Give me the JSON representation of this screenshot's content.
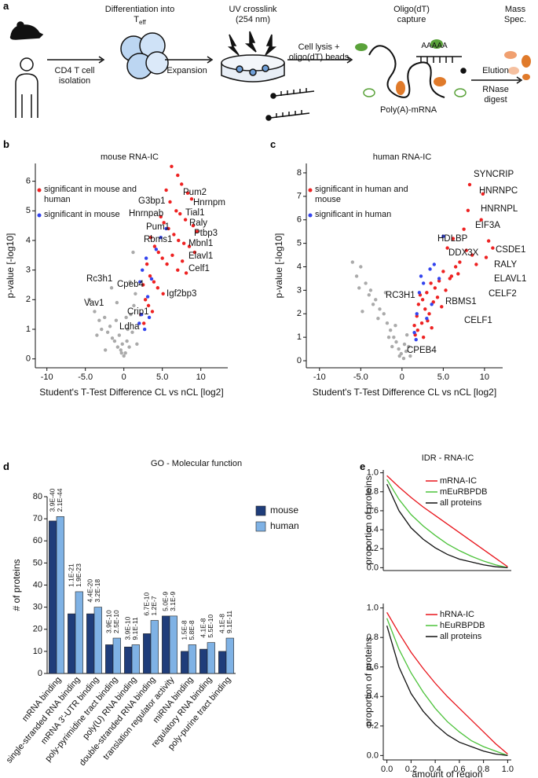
{
  "panel_labels": [
    "a",
    "b",
    "c",
    "d",
    "e"
  ],
  "workflow": {
    "differentiation": "Differentiation into T",
    "differentiation_sub": "eff",
    "isolation": "CD4 T cell isolation",
    "expansion": "Expansion",
    "crosslink": "UV crosslink (254 nm)",
    "lysis": "Cell lysis + oligo(dT) beads",
    "capture": "Oligo(dT) capture",
    "polya_tail": "AAAAA",
    "mrna": "Poly(A)-mRNA",
    "elution": "Elution",
    "digest": "RNase digest",
    "mass_spec": "Mass Spec."
  },
  "chart_data": [
    {
      "type": "scatter",
      "title": "mouse RNA-IC",
      "x_label": "Student's T-Test Difference CL vs nCL [log2]",
      "y_label": "p-value [-log10]",
      "xlim": [
        -11.5,
        13.5
      ],
      "ylim": [
        -0.3,
        6.6
      ],
      "xticks": [
        -10,
        {
          "value": -5,
          "label": "-5.0"
        },
        0,
        {
          "value": 5,
          "label": "5.0"
        },
        10
      ],
      "yticks": [
        0,
        1,
        2,
        3,
        4,
        5,
        6
      ],
      "series": [
        {
          "color": "#aaaaaa",
          "x": [
            -4.5,
            -3.8,
            -3.2,
            -2.9,
            -2.5,
            -2.1,
            -1.8,
            -1.5,
            -1.2,
            -1.0,
            -0.8,
            -0.6,
            -0.4,
            -0.2,
            0.0,
            0.2,
            0.4,
            0.5,
            0.7,
            0.9,
            1.1,
            1.3,
            1.5,
            1.7,
            -1.6,
            -2.4,
            -0.9,
            0.3,
            0.8,
            -3.5,
            1.2,
            -0.3
          ],
          "values": [
            2.0,
            1.6,
            1.3,
            1.0,
            1.4,
            0.9,
            1.1,
            0.7,
            0.6,
            1.3,
            0.4,
            0.8,
            0.3,
            0.5,
            0.1,
            0.2,
            0.6,
            1.0,
            0.4,
            1.5,
            0.9,
            1.8,
            2.2,
            0.5,
            2.4,
            0.3,
            1.9,
            1.4,
            2.6,
            0.8,
            3.6,
            0.2
          ]
        },
        {
          "name": "significant in mouse and human",
          "color": "#ee2222",
          "x": [
            6.2,
            7.0,
            7.5,
            8.3,
            8.8,
            5.5,
            6.0,
            6.8,
            7.3,
            8.0,
            9.0,
            9.5,
            4.8,
            5.2,
            5.8,
            6.5,
            7.1,
            7.8,
            8.5,
            9.2,
            3.5,
            4.0,
            4.5,
            5.0,
            5.6,
            6.3,
            7.0,
            7.6,
            8.1,
            3.0,
            3.4,
            3.9,
            4.4,
            5.1,
            2.5,
            2.8,
            3.2,
            3.7,
            2.2,
            2.6
          ],
          "values": [
            6.5,
            6.2,
            5.9,
            5.6,
            5.4,
            5.7,
            5.3,
            5.0,
            4.9,
            4.7,
            4.5,
            4.3,
            4.8,
            4.6,
            4.4,
            4.2,
            4.0,
            3.9,
            3.8,
            3.6,
            4.1,
            3.8,
            3.6,
            3.4,
            3.2,
            3.5,
            3.0,
            3.3,
            2.9,
            3.2,
            2.8,
            2.6,
            2.4,
            2.2,
            2.5,
            2.0,
            1.8,
            1.6,
            1.5,
            1.2
          ]
        },
        {
          "name": "significant in mouse",
          "color": "#3344ee",
          "x": [
            2.0,
            2.3,
            2.7,
            3.1,
            3.6,
            2.4,
            2.9,
            3.3,
            4.2,
            2.1,
            4.8,
            5.5
          ],
          "values": [
            1.2,
            1.5,
            1.0,
            2.1,
            2.7,
            3.0,
            3.4,
            1.4,
            3.7,
            2.6,
            4.1,
            4.4
          ]
        }
      ],
      "annotations": [
        "Pum2",
        "Hnrnpm",
        "G3bp1",
        "Tial1",
        "Raly",
        "Hnrnpab",
        "Ptbp3",
        "Pum1",
        "Mbnl1",
        "Rbms1",
        "Elavl1",
        "Celf1",
        "Igf2bp3",
        "Rc3h1",
        "Cpeb4",
        "Vav1",
        "Crip1",
        "Ldha"
      ]
    },
    {
      "type": "scatter",
      "title": "human RNA-IC",
      "x_label": "Student's T-Test Difference CL vs nCL [log2]",
      "y_label": "p-value [-log10]",
      "xlim": [
        -11.6,
        12.2
      ],
      "ylim": [
        -0.3,
        8.4
      ],
      "xticks": [
        -10,
        {
          "value": -5,
          "label": "-5.0"
        },
        0,
        {
          "value": 5,
          "label": "5.0"
        },
        10
      ],
      "yticks": [
        0,
        1,
        2,
        3,
        4,
        5,
        6,
        7,
        8
      ],
      "series": [
        {
          "color": "#aaaaaa",
          "x": [
            -6.0,
            -5.5,
            -5.0,
            -4.4,
            -3.8,
            -3.2,
            -2.7,
            -2.2,
            -1.8,
            -1.4,
            -1.0,
            -0.7,
            -0.4,
            -0.1,
            0.2,
            0.5,
            0.8,
            1.0,
            -5.2,
            -4.0,
            -2.9,
            -1.6,
            -0.8,
            0.3,
            -3.5,
            -2.0,
            -1.2,
            0.6,
            -0.3,
            -4.8
          ],
          "values": [
            4.2,
            3.6,
            4.0,
            3.3,
            3.0,
            2.6,
            2.2,
            2.0,
            1.6,
            1.3,
            1.0,
            0.8,
            0.5,
            0.3,
            0.1,
            0.4,
            0.6,
            0.2,
            3.1,
            2.8,
            1.8,
            1.0,
            1.5,
            0.7,
            2.4,
            2.9,
            0.6,
            1.1,
            0.2,
            2.1
          ]
        },
        {
          "name": "significant in human and mouse",
          "color": "#ee2222",
          "x": [
            8.2,
            9.8,
            8.0,
            9.6,
            7.5,
            6.2,
            5.5,
            10.5,
            11.0,
            10.2,
            9.0,
            8.5,
            7.0,
            6.5,
            6.0,
            5.0,
            4.5,
            4.0,
            3.5,
            3.0,
            2.5,
            2.0,
            1.8,
            2.2,
            2.8,
            3.3,
            3.8,
            4.3,
            5.3,
            5.8,
            6.8,
            1.5,
            1.6,
            2.4,
            3.1,
            4.8,
            1.9,
            2.6,
            3.6,
            7.8
          ],
          "values": [
            7.5,
            7.1,
            6.4,
            6.0,
            5.6,
            5.2,
            4.8,
            5.1,
            4.8,
            4.4,
            4.1,
            4.5,
            4.2,
            4.0,
            3.6,
            3.8,
            3.4,
            3.1,
            3.3,
            2.9,
            2.6,
            2.4,
            1.9,
            2.8,
            2.2,
            2.0,
            2.5,
            2.7,
            3.0,
            3.5,
            3.7,
            1.5,
            1.1,
            1.6,
            1.7,
            2.3,
            1.3,
            1.0,
            1.4,
            4.7
          ]
        },
        {
          "name": "significant in human",
          "color": "#3344ee",
          "x": [
            1.5,
            1.8,
            2.1,
            2.6,
            3.0,
            3.4,
            3.9,
            4.5,
            5.0,
            1.7,
            2.3,
            3.6
          ],
          "values": [
            1.2,
            2.0,
            2.9,
            3.3,
            1.8,
            3.9,
            4.1,
            3.5,
            5.3,
            0.9,
            3.6,
            2.4
          ]
        }
      ],
      "annotations": [
        "SYNCRIP",
        "HNRNPC",
        "HNRNPL",
        "EIF3A",
        "HDLBP",
        "DDX3X",
        "CSDE1",
        "RALY",
        "ELAVL1",
        "CELF2",
        "RC3H1",
        "RBMS1",
        "CELF1",
        "CPEB4"
      ]
    },
    {
      "type": "bar",
      "title": "GO - Molecular function",
      "y_label": "# of proteins",
      "categories": [
        "mRNA binding",
        "single-stranded RNA binding",
        "mRNA 3'-UTR binding",
        "poly-pyrimidine tract binding",
        "poly(U) RNA binding",
        "double-stranded RNA binding",
        "translation regulator activity",
        "miRNA binding",
        "regulatory RNA binding",
        "poly-purine tract binding"
      ],
      "ylim": [
        0,
        80
      ],
      "yticks": [
        0,
        10,
        20,
        30,
        40,
        50,
        60,
        70,
        80
      ],
      "series": [
        {
          "name": "mouse",
          "color": "#1f3d7a",
          "values": [
            69,
            27,
            27,
            13,
            12,
            18,
            26,
            10,
            11,
            10
          ],
          "p_values": [
            "3.9E-40",
            "1.1E-21",
            "4.4E-20",
            "3.9E-10",
            "3.9E-10",
            "6.7E-10",
            "5.0E-9",
            "1.5E-8",
            "4.1E-8",
            "4.1E-8"
          ]
        },
        {
          "name": "human",
          "color": "#7fb2e5",
          "values": [
            71,
            37,
            30,
            16,
            13,
            24,
            26,
            13,
            14,
            16
          ],
          "p_values": [
            "2.1E-44",
            "1.9E-23",
            "3.2E-18",
            "2.5E-10",
            "9.1E-11",
            "1.2E-7",
            "3.1E-9",
            "5.8E-8",
            "5.5E-10",
            "9.1E-11"
          ]
        }
      ]
    },
    {
      "type": "line",
      "title": "IDR - RNA-IC",
      "y_label": "proportion of proteins",
      "xlim": [
        -0.03,
        1.03
      ],
      "ylim": [
        -0.03,
        1.03
      ],
      "yticks": [
        {
          "value": 0,
          "label": "0.0"
        },
        0.2,
        0.4,
        0.6,
        0.8,
        {
          "value": 1,
          "label": "1.0"
        }
      ],
      "x": [
        0,
        0.1,
        0.2,
        0.3,
        0.4,
        0.5,
        0.6,
        0.7,
        0.8,
        0.9,
        1.0
      ],
      "series": [
        {
          "name": "mRNA-IC",
          "color": "#e8141b",
          "values": [
            0.97,
            0.85,
            0.74,
            0.64,
            0.55,
            0.46,
            0.37,
            0.28,
            0.19,
            0.1,
            0.01
          ]
        },
        {
          "name": "mEuRBPDB",
          "color": "#4cc23a",
          "values": [
            0.93,
            0.72,
            0.56,
            0.44,
            0.34,
            0.25,
            0.18,
            0.12,
            0.07,
            0.03,
            0.0
          ]
        },
        {
          "name": "all proteins",
          "color": "#111111",
          "values": [
            0.88,
            0.6,
            0.42,
            0.3,
            0.21,
            0.14,
            0.09,
            0.06,
            0.03,
            0.01,
            0.0
          ]
        }
      ]
    },
    {
      "type": "line",
      "x_label": "amount of region",
      "y_label": "proportion of proteins",
      "xlim": [
        -0.03,
        1.03
      ],
      "ylim": [
        -0.03,
        1.03
      ],
      "xticks": [
        {
          "value": 0,
          "label": "0.0"
        },
        0.2,
        0.4,
        0.6,
        0.8,
        {
          "value": 1,
          "label": "1.0"
        }
      ],
      "yticks": [
        {
          "value": 0,
          "label": "0.0"
        },
        0.2,
        0.4,
        0.6,
        0.8,
        {
          "value": 1,
          "label": "1.0"
        }
      ],
      "x": [
        0,
        0.1,
        0.2,
        0.3,
        0.4,
        0.5,
        0.6,
        0.7,
        0.8,
        0.9,
        1.0
      ],
      "series": [
        {
          "name": "hRNA-IC",
          "color": "#e8141b",
          "values": [
            0.97,
            0.83,
            0.7,
            0.59,
            0.49,
            0.4,
            0.32,
            0.24,
            0.16,
            0.08,
            0.01
          ]
        },
        {
          "name": "hEuRBPDB",
          "color": "#4cc23a",
          "values": [
            0.93,
            0.72,
            0.56,
            0.43,
            0.32,
            0.23,
            0.16,
            0.1,
            0.06,
            0.03,
            0.0
          ]
        },
        {
          "name": "all proteins",
          "color": "#111111",
          "values": [
            0.88,
            0.6,
            0.42,
            0.3,
            0.21,
            0.14,
            0.09,
            0.06,
            0.03,
            0.01,
            0.0
          ]
        }
      ]
    }
  ]
}
